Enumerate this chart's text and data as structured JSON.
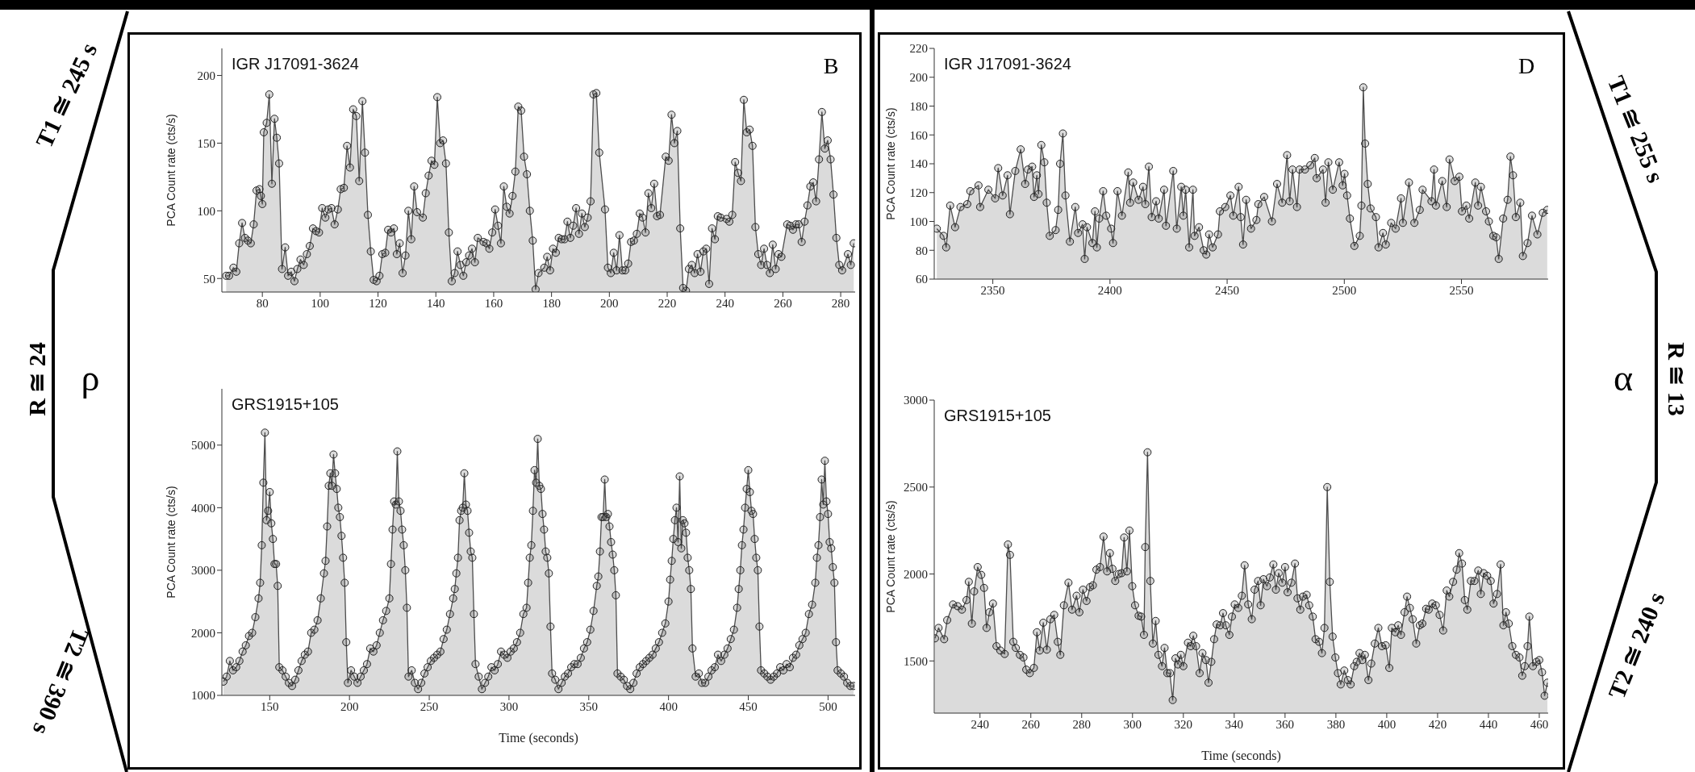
{
  "chart_data": [
    {
      "type": "area",
      "title": "IGR J17091-3624",
      "ylabel": "PCA Count rate (cts/s)",
      "xlim": [
        66,
        285
      ],
      "xticks": [
        80,
        100,
        120,
        140,
        160,
        180,
        200,
        220,
        240,
        260,
        280
      ],
      "ylim": [
        40,
        220
      ],
      "yticks": [
        50,
        100,
        150,
        200
      ],
      "marker": "circle",
      "annotations": [
        "B",
        "T1 ≅ 245 s",
        "R ≅ 24",
        "ρ"
      ],
      "series": [
        {
          "color": "#4d4d4d",
          "x": [
            67.5,
            68.5,
            70,
            71,
            72,
            73,
            74,
            75,
            76,
            77,
            78,
            79,
            79.5,
            80,
            80.5,
            81.5,
            82.4,
            83.3,
            84.2,
            85,
            85.8,
            86.8,
            87.9,
            88.9,
            90.0,
            91.1,
            92.1,
            93.2,
            94.3,
            95.4,
            96.4,
            97.5,
            98.6,
            99.6,
            100.7,
            101.8,
            102.8,
            103.9,
            105.0,
            106.1,
            107.1,
            108.2,
            109.3,
            110.3,
            111.4,
            112.5,
            113.5,
            114.6,
            115.5,
            116.5,
            117.5,
            118.5,
            119.5,
            120.5,
            121.5,
            122.5,
            123.5,
            124.5,
            125.5,
            126.5,
            127.5,
            128.5,
            129.5,
            130.5,
            131.5,
            132.5,
            133.5,
            135.5,
            136.5,
            137.5,
            138.5,
            139.5,
            140.5,
            141.5,
            142.5,
            143.5,
            144.5,
            145.5,
            146.5,
            147.5,
            148.5,
            149.5,
            150.5,
            151.5,
            152.5,
            153.5,
            154.5,
            156.5,
            157.5,
            158.5,
            159.5,
            160.5,
            161.5,
            162.5,
            163.5,
            164.5,
            165.5,
            166.5,
            167.5,
            168.5,
            169.5,
            170.5,
            171.5,
            172.5,
            173.5,
            174.5,
            175.5,
            177.5,
            178.5,
            179.5,
            180.5,
            181.5,
            182.5,
            183.5,
            184.5,
            185.5,
            186.5,
            187.5,
            188.5,
            189.5,
            190.5,
            191.5,
            192.5,
            193.5,
            194.5,
            195.5,
            196.5,
            198.5,
            199.5,
            200.5,
            201.5,
            202.5,
            203.5,
            204.5,
            205.5,
            206.5,
            207.5,
            208.5,
            209.5,
            210.5,
            211.5,
            212.5,
            213.5,
            214.5,
            215.5,
            216.5,
            217.5,
            219.5,
            220.5,
            221.5,
            222.5,
            223.5,
            224.5,
            225.5,
            226.5,
            227.5,
            228.5,
            229.5,
            230.5,
            231.5,
            232.5,
            233.5,
            234.5,
            235.5,
            236.5,
            237.5,
            238.5,
            240.5,
            241.5,
            242.5,
            243.5,
            244.5,
            245.5,
            246.5,
            247.5,
            248.5,
            249.5,
            250.5,
            251.5,
            252.5,
            253.5,
            254.5,
            255.5,
            256.5,
            257.5,
            258.5,
            259.5,
            261.5,
            262.5,
            263.5,
            264.5,
            265.5,
            266.5,
            267.5,
            268.5,
            269.5,
            270.5,
            271.5,
            272.5,
            273.5,
            274.5,
            275.5,
            276.5,
            277.5,
            278.5,
            279.5,
            280.5,
            282.5,
            283.5,
            284.5
          ],
          "values": [
            52,
            52,
            58,
            55,
            76,
            91,
            80,
            78,
            76,
            90,
            115,
            116,
            111,
            105,
            158,
            165,
            186,
            120,
            168,
            154,
            135,
            57,
            73,
            52,
            55,
            48,
            57,
            64,
            60,
            68,
            74,
            87,
            85,
            84,
            102,
            95,
            101,
            102,
            90,
            101,
            116,
            117,
            148,
            132,
            175,
            170,
            122,
            181,
            143,
            97,
            70,
            49,
            48,
            52,
            68,
            69,
            86,
            84,
            87,
            68,
            76,
            54,
            67,
            100,
            79,
            118,
            99,
            95,
            113,
            126,
            137,
            134,
            184,
            150,
            152,
            135,
            84,
            48,
            54,
            70,
            60,
            52,
            62,
            67,
            72,
            62,
            80,
            77,
            76,
            72,
            84,
            101,
            89,
            76,
            118,
            103,
            98,
            111,
            129,
            177,
            174,
            140,
            127,
            100,
            78,
            42,
            54,
            58,
            66,
            56,
            72,
            69,
            80,
            79,
            79,
            92,
            80,
            89,
            102,
            83,
            98,
            88,
            95,
            107,
            186,
            187,
            143,
            101,
            58,
            54,
            69,
            56,
            82,
            56,
            56,
            61,
            77,
            78,
            83,
            98,
            95,
            84,
            113,
            102,
            120,
            96,
            97,
            140,
            137,
            171,
            150,
            159,
            87,
            43,
            41,
            57,
            60,
            54,
            68,
            55,
            70,
            72,
            46,
            87,
            79,
            96,
            95,
            94,
            92,
            97,
            136,
            128,
            122,
            182,
            158,
            160,
            148,
            88,
            68,
            60,
            72,
            60,
            54,
            75,
            57,
            68,
            66,
            90,
            89,
            86,
            90,
            90,
            77,
            92,
            104,
            118,
            121,
            107,
            138,
            173,
            146,
            152,
            138,
            112,
            80,
            60,
            56,
            68,
            60,
            76
          ]
        }
      ]
    },
    {
      "type": "area",
      "title": "GRS1915+105",
      "xlabel": "Time (seconds)",
      "ylabel": "PCA Count rate (cts/s)",
      "xlim": [
        120,
        517
      ],
      "xticks": [
        150,
        200,
        250,
        300,
        350,
        400,
        450,
        500
      ],
      "ylim": [
        1000,
        5900
      ],
      "yticks": [
        1000,
        2000,
        3000,
        4000,
        5000
      ],
      "marker": "circle",
      "annotations": [
        "T2 ≅ 390 s"
      ],
      "series": [
        {
          "color": "#4d4d4d",
          "x": [
            121,
            123,
            125,
            127,
            129,
            131,
            133,
            135,
            137,
            139,
            141,
            143,
            144,
            145,
            146,
            147,
            148,
            149,
            150,
            151,
            152,
            153,
            154,
            155,
            156,
            158,
            160,
            162,
            164,
            166,
            168,
            170,
            172,
            174,
            176,
            178,
            180,
            182,
            184,
            185,
            186,
            187,
            188,
            189,
            190,
            191,
            192,
            193,
            194,
            195,
            196,
            197,
            198,
            199,
            201,
            203,
            205,
            207,
            209,
            211,
            213,
            215,
            217,
            219,
            221,
            223,
            225,
            226,
            227,
            228,
            229,
            230,
            231,
            232,
            233,
            234,
            235,
            236,
            237,
            239,
            241,
            243,
            245,
            247,
            249,
            251,
            253,
            255,
            257,
            259,
            261,
            263,
            265,
            266,
            267,
            268,
            269,
            270,
            271,
            272,
            273,
            274,
            275,
            276,
            277,
            278,
            279,
            281,
            283,
            285,
            287,
            289,
            291,
            293,
            295,
            297,
            299,
            301,
            303,
            305,
            307,
            309,
            311,
            312,
            313,
            314,
            315,
            316,
            317,
            318,
            319,
            320,
            321,
            322,
            323,
            324,
            325,
            326,
            327,
            329,
            331,
            333,
            335,
            337,
            339,
            341,
            343,
            345,
            347,
            349,
            351,
            353,
            355,
            356,
            357,
            358,
            359,
            360,
            361,
            362,
            363,
            364,
            365,
            366,
            367,
            368,
            370,
            372,
            374,
            376,
            378,
            380,
            382,
            384,
            386,
            388,
            390,
            392,
            394,
            396,
            398,
            400,
            401,
            402,
            403,
            404,
            405,
            406,
            407,
            408,
            409,
            410,
            411,
            412,
            413,
            414,
            415,
            417,
            419,
            421,
            423,
            425,
            427,
            429,
            431,
            433,
            435,
            437,
            439,
            441,
            443,
            444,
            445,
            446,
            447,
            448,
            449,
            450,
            451,
            452,
            453,
            454,
            455,
            456,
            457,
            458,
            460,
            462,
            464,
            466,
            468,
            470,
            472,
            474,
            476,
            478,
            480,
            482,
            484,
            486,
            488,
            490,
            492,
            493,
            494,
            495,
            496,
            497,
            498,
            499,
            500,
            501,
            502,
            503,
            504,
            505,
            506,
            508,
            510,
            512,
            514,
            516
          ],
          "values": [
            1220,
            1300,
            1550,
            1400,
            1450,
            1550,
            1700,
            1800,
            1950,
            2000,
            2250,
            2550,
            2800,
            3400,
            4400,
            5200,
            3800,
            3950,
            4250,
            3750,
            3500,
            3100,
            3100,
            2750,
            1450,
            1400,
            1300,
            1200,
            1150,
            1250,
            1400,
            1550,
            1650,
            1700,
            2000,
            2050,
            2200,
            2550,
            2950,
            3150,
            3700,
            4350,
            4550,
            4350,
            4850,
            4550,
            4300,
            4000,
            3850,
            3550,
            3200,
            2800,
            1850,
            1200,
            1400,
            1300,
            1200,
            1300,
            1400,
            1500,
            1750,
            1700,
            1800,
            2000,
            2200,
            2350,
            2550,
            3100,
            3650,
            4100,
            4050,
            4900,
            4100,
            3950,
            3650,
            3400,
            3000,
            2400,
            1300,
            1400,
            1200,
            1100,
            1200,
            1350,
            1450,
            1550,
            1600,
            1650,
            1700,
            1900,
            2050,
            2300,
            2550,
            2700,
            2950,
            3200,
            3800,
            3950,
            4000,
            4550,
            4050,
            3950,
            3600,
            3300,
            3200,
            2300,
            1500,
            1300,
            1100,
            1200,
            1300,
            1450,
            1400,
            1500,
            1700,
            1650,
            1600,
            1700,
            1750,
            1850,
            2000,
            2300,
            2400,
            2800,
            3200,
            3400,
            3950,
            4600,
            4400,
            5100,
            4350,
            4300,
            3900,
            3650,
            3300,
            3200,
            2950,
            2100,
            1350,
            1250,
            1100,
            1200,
            1300,
            1350,
            1450,
            1500,
            1500,
            1600,
            1750,
            1850,
            2050,
            2350,
            2750,
            2900,
            3300,
            3850,
            3850,
            4450,
            3850,
            3900,
            3700,
            3450,
            3250,
            3000,
            2600,
            1350,
            1300,
            1250,
            1150,
            1100,
            1200,
            1350,
            1450,
            1500,
            1550,
            1600,
            1650,
            1750,
            1850,
            2000,
            2150,
            2500,
            2850,
            3150,
            3500,
            3800,
            4000,
            3450,
            4500,
            3350,
            3800,
            3750,
            3600,
            3200,
            3000,
            2700,
            1750,
            1300,
            1350,
            1200,
            1200,
            1300,
            1400,
            1450,
            1650,
            1550,
            1650,
            1750,
            1900,
            2050,
            2400,
            2700,
            3000,
            3400,
            3650,
            4000,
            4300,
            4600,
            4250,
            3950,
            3900,
            3500,
            3200,
            3000,
            2100,
            1400,
            1350,
            1300,
            1250,
            1300,
            1350,
            1450,
            1400,
            1500,
            1450,
            1600,
            1650,
            1800,
            1900,
            2000,
            2300,
            2450,
            2800,
            3200,
            3400,
            3850,
            4450,
            4050,
            4750,
            4100,
            3900,
            3450,
            3350,
            3050,
            2800,
            1850,
            1400,
            1350,
            1300,
            1200,
            1150,
            1150
          ]
        }
      ]
    },
    {
      "type": "area",
      "title": "IGR J17091-3624",
      "ylabel": "PCA Count rate (cts/s)",
      "xlim": [
        2325,
        2587
      ],
      "xticks": [
        2350,
        2400,
        2450,
        2500,
        2550
      ],
      "ylim": [
        60,
        220
      ],
      "yticks": [
        60,
        80,
        100,
        120,
        140,
        160,
        180,
        200,
        220
      ],
      "marker": "circle",
      "annotations": [
        "D",
        "T1 ≅ 255 s",
        "R ≅ 13",
        "α"
      ],
      "series": [
        {
          "color": "#4d4d4d",
          "x": [
            2326.1,
            2329.0,
            2330.1,
            2331.8,
            2333.9,
            2336.2,
            2339.1,
            2340.4,
            2343.9,
            2344.6,
            2348.1,
            2351.0,
            2352.3,
            2354.2,
            2356.3,
            2357.3,
            2359.6,
            2361.9,
            2363.8,
            2365.0,
            2366.8,
            2367.6,
            2368.8,
            2369.5,
            2370.7,
            2372.0,
            2373.0,
            2374.3,
            2376.8,
            2377.9,
            2378.7,
            2379.9,
            2381.0,
            2382.9,
            2385.2,
            2386.4,
            2388.3,
            2389.2,
            2390.2,
            2392.5,
            2393.6,
            2394.4,
            2395.4,
            2397.1,
            2398.4,
            2400.5,
            2401.3,
            2403.2,
            2405.1,
            2407.8,
            2408.6,
            2409.9,
            2412.2,
            2414.1,
            2415.1,
            2416.6,
            2417.8,
            2419.7,
            2420.8,
            2423.1,
            2423.9,
            2427.0,
            2428.5,
            2430.4,
            2431.3,
            2432.3,
            2433.8,
            2435.4,
            2436.1,
            2438.0,
            2440.0,
            2441.1,
            2442.3,
            2443.8,
            2446.1,
            2446.9,
            2449.2,
            2451.4,
            2452.6,
            2454.9,
            2455.8,
            2456.8,
            2458.1,
            2460.2,
            2462.5,
            2463.3,
            2465.8,
            2469.1,
            2471.3,
            2473.5,
            2475.6,
            2476.7,
            2477.9,
            2479.8,
            2480.9,
            2483.2,
            2485.5,
            2487.4,
            2488.2,
            2490.9,
            2492.0,
            2493.2,
            2495.1,
            2497.8,
            2499.3,
            2500.1,
            2501.2,
            2502.4,
            2504.3,
            2506.6,
            2507.3,
            2508.1,
            2508.9,
            2510.0,
            2511.2,
            2513.5,
            2514.6,
            2516.5,
            2517.7,
            2520.0,
            2521.9,
            2524.2,
            2525.0,
            2527.6,
            2529.9,
            2532.2,
            2533.4,
            2537.2,
            2538.3,
            2539.1,
            2541.8,
            2543.7,
            2544.9,
            2547.1,
            2549.1,
            2550.2,
            2552.1,
            2553.3,
            2555.9,
            2557.1,
            2558.3,
            2560.5,
            2561.7,
            2563.6,
            2564.8,
            2565.9,
            2567.8,
            2569.7,
            2570.9,
            2572.0,
            2573.2,
            2575.1,
            2576.2,
            2578.2,
            2580.1,
            2582.4,
            2584.7,
            2586.6
          ],
          "values": [
            95,
            90,
            82,
            111,
            96,
            110,
            112,
            121,
            125,
            110,
            122,
            116,
            137,
            118,
            132,
            105,
            135,
            150,
            126,
            136,
            138,
            117,
            132,
            119,
            153,
            141,
            113,
            90,
            94,
            108,
            140,
            161,
            118,
            86,
            110,
            92,
            98,
            74,
            96,
            85,
            107,
            82,
            102,
            121,
            104,
            95,
            85,
            121,
            104,
            134,
            113,
            127,
            115,
            124,
            112,
            138,
            103,
            114,
            102,
            122,
            97,
            135,
            95,
            124,
            104,
            122,
            82,
            122,
            90,
            96,
            80,
            77,
            91,
            82,
            91,
            107,
            110,
            118,
            104,
            124,
            103,
            84,
            115,
            95,
            101,
            112,
            117,
            100,
            126,
            113,
            146,
            114,
            136,
            110,
            136,
            136,
            139,
            144,
            130,
            136,
            113,
            141,
            122,
            141,
            125,
            133,
            118,
            102,
            83,
            90,
            111,
            193,
            154,
            126,
            109,
            103,
            82,
            92,
            84,
            99,
            95,
            116,
            99,
            127,
            99,
            108,
            122,
            114,
            136,
            111,
            128,
            110,
            143,
            128,
            131,
            107,
            111,
            102,
            127,
            111,
            124,
            107,
            100,
            90,
            89,
            74,
            102,
            115,
            145,
            132,
            103,
            113,
            76,
            85,
            104,
            91,
            106,
            108
          ]
        }
      ]
    },
    {
      "type": "area",
      "title": "GRS1915+105",
      "xlabel": "Time (seconds)",
      "ylabel": "PCA Count rate (cts/s)",
      "xlim": [
        222,
        463.5
      ],
      "xticks": [
        240,
        260,
        280,
        300,
        320,
        340,
        360,
        380,
        400,
        420,
        440,
        460
      ],
      "ylim": [
        1200,
        3000
      ],
      "yticks": [
        1500,
        2000,
        2500,
        3000
      ],
      "marker": "circle",
      "annotations": [
        "T2 ≅ 240 s"
      ],
      "series": [
        {
          "color": "#4d4d4d",
          "x": [
            222.3,
            223.7,
            225.9,
            227.1,
            229.4,
            231.2,
            232.9,
            234.7,
            235.6,
            236.8,
            237.7,
            239.1,
            240.5,
            241.6,
            242.6,
            243.7,
            245.1,
            246.5,
            248.0,
            249.7,
            251.0,
            251.8,
            253.1,
            254.1,
            255.7,
            257.1,
            258.2,
            259.6,
            261.2,
            262.4,
            263.5,
            264.9,
            266.3,
            267.7,
            269.2,
            270.6,
            271.6,
            273.0,
            274.8,
            276.2,
            278.0,
            279.1,
            280.5,
            281.9,
            283.3,
            284.4,
            285.8,
            287.2,
            288.6,
            290.0,
            291.1,
            292.1,
            293.2,
            294.6,
            295.7,
            296.7,
            297.8,
            298.8,
            299.9,
            301.0,
            302.4,
            303.4,
            304.5,
            305.0,
            305.9,
            307.0,
            308.0,
            309.1,
            310.2,
            311.6,
            312.6,
            313.7,
            314.7,
            315.8,
            316.9,
            317.9,
            319.0,
            320.0,
            321.8,
            322.9,
            323.9,
            325.0,
            326.4,
            327.5,
            328.9,
            329.9,
            331.0,
            332.1,
            333.1,
            334.5,
            335.6,
            336.7,
            338.1,
            339.1,
            340.2,
            341.6,
            343.0,
            344.1,
            345.5,
            346.9,
            348.0,
            349.4,
            350.4,
            351.5,
            352.9,
            354.0,
            355.4,
            356.4,
            357.5,
            358.9,
            360.0,
            361.0,
            362.5,
            363.9,
            364.9,
            366.0,
            367.0,
            368.5,
            369.5,
            370.9,
            372.0,
            373.4,
            374.5,
            375.5,
            376.6,
            377.6,
            378.7,
            379.8,
            380.8,
            381.9,
            383.3,
            384.7,
            385.8,
            387.2,
            388.2,
            389.3,
            390.4,
            391.4,
            392.8,
            393.9,
            395.3,
            396.7,
            398.1,
            399.6,
            401.0,
            402.0,
            403.4,
            404.5,
            405.6,
            407.0,
            408.0,
            409.1,
            410.2,
            411.6,
            413.0,
            414.0,
            415.5,
            416.5,
            417.9,
            419.3,
            420.8,
            422.2,
            423.6,
            424.6,
            426.1,
            427.5,
            428.5,
            429.6,
            430.7,
            431.7,
            433.1,
            434.5,
            436.0,
            437.0,
            438.1,
            439.5,
            440.9,
            442.0,
            443.4,
            444.8,
            445.9,
            446.9,
            448.0,
            449.4,
            450.8,
            452.2,
            453.3,
            454.3,
            455.4,
            456.1,
            457.5,
            458.9,
            460.0,
            461.1,
            462.1,
            463.2
          ],
          "values": [
            1630,
            1690,
            1625,
            1735,
            1825,
            1815,
            1795,
            1850,
            1955,
            1715,
            1900,
            2040,
            1995,
            1920,
            1690,
            1780,
            1830,
            1585,
            1560,
            1540,
            2170,
            2110,
            1610,
            1575,
            1535,
            1520,
            1450,
            1430,
            1460,
            1665,
            1560,
            1720,
            1565,
            1740,
            1765,
            1610,
            1535,
            1820,
            1950,
            1795,
            1875,
            1780,
            1910,
            1845,
            1925,
            1935,
            2025,
            2040,
            2215,
            2015,
            2120,
            2030,
            1960,
            2000,
            2005,
            2210,
            2015,
            2250,
            1930,
            1820,
            1760,
            1755,
            1650,
            2155,
            2700,
            1960,
            1600,
            1730,
            1535,
            1470,
            1575,
            1430,
            1430,
            1275,
            1515,
            1480,
            1535,
            1470,
            1605,
            1585,
            1645,
            1585,
            1430,
            1545,
            1505,
            1375,
            1495,
            1625,
            1710,
            1705,
            1775,
            1705,
            1650,
            1755,
            1825,
            1805,
            1875,
            2050,
            1825,
            1740,
            1910,
            1960,
            1820,
            1970,
            1930,
            1980,
            2055,
            1910,
            2005,
            1950,
            2040,
            1895,
            1950,
            2060,
            1860,
            1795,
            1870,
            1880,
            1820,
            1755,
            1625,
            1610,
            1545,
            1690,
            2500,
            1955,
            1640,
            1520,
            1430,
            1365,
            1445,
            1390,
            1365,
            1470,
            1495,
            1545,
            1505,
            1535,
            1390,
            1485,
            1600,
            1690,
            1585,
            1590,
            1460,
            1690,
            1665,
            1705,
            1650,
            1780,
            1870,
            1805,
            1740,
            1600,
            1705,
            1715,
            1800,
            1795,
            1830,
            1820,
            1765,
            1675,
            1905,
            1870,
            1955,
            2025,
            2120,
            2060,
            1850,
            1795,
            1960,
            1960,
            2020,
            1885,
            2005,
            1990,
            1960,
            1830,
            1885,
            2055,
            1705,
            1780,
            1715,
            1585,
            1535,
            1520,
            1415,
            1470,
            1585,
            1755,
            1470,
            1495,
            1505,
            1435,
            1300,
            1375
          ]
        }
      ]
    }
  ]
}
